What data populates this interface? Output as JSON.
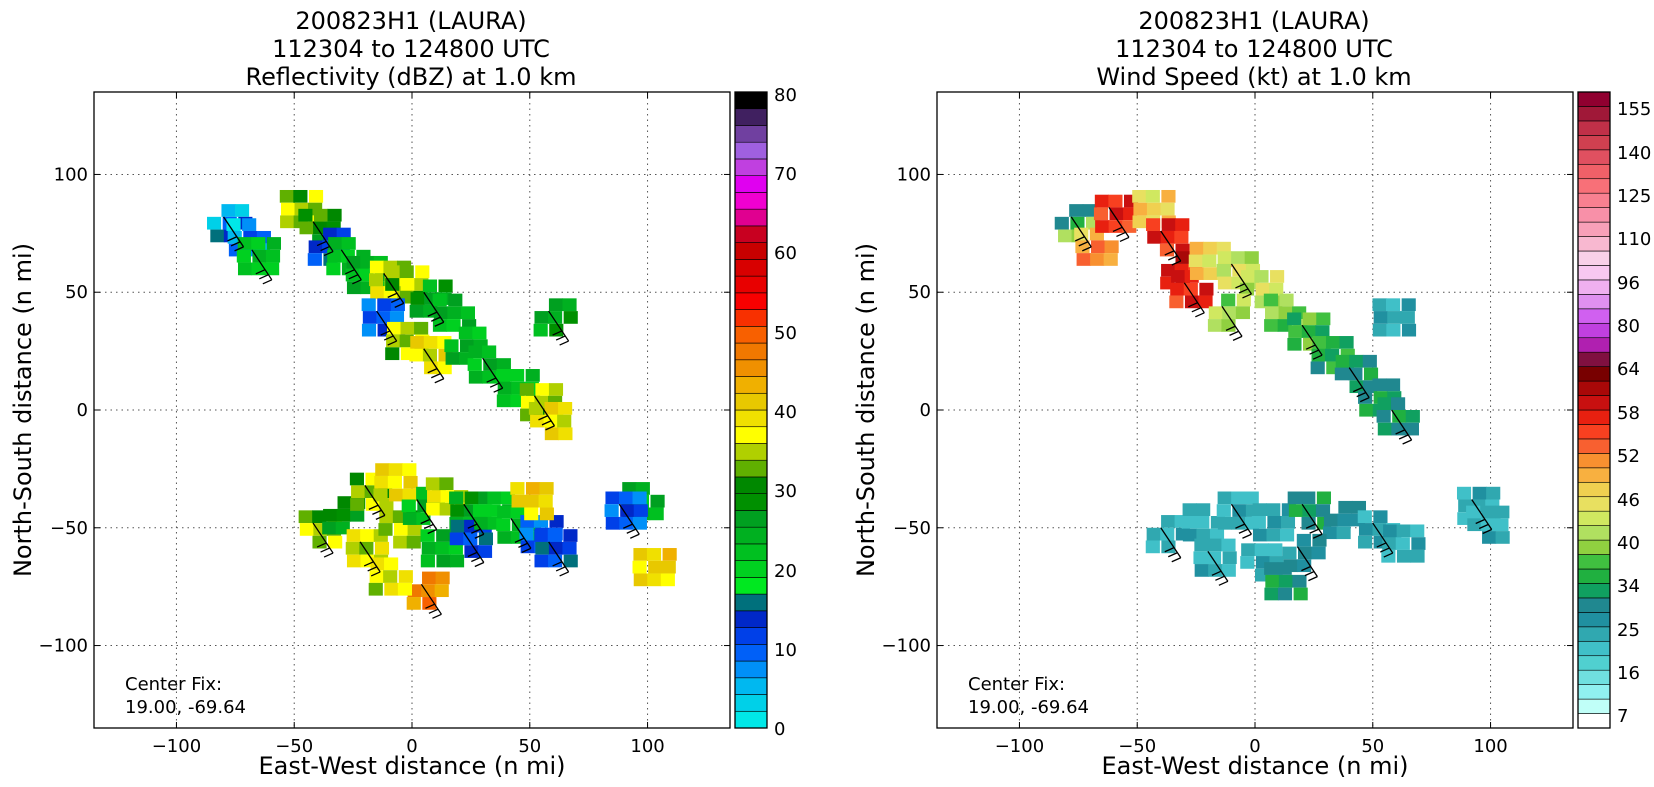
{
  "panels": [
    {
      "title_lines": [
        "200823H1 (LAURA)",
        "112304 to 124800 UTC",
        "Reflectivity (dBZ) at 1.0 km"
      ],
      "xlabel": "East-West distance (n mi)",
      "ylabel": "North-South distance (n mi)",
      "center_fix_label": "Center Fix:",
      "center_fix_value": "19.00, -69.64",
      "colorbar_ticks": [
        "0",
        "10",
        "20",
        "30",
        "40",
        "50",
        "60",
        "70",
        "80"
      ]
    },
    {
      "title_lines": [
        "200823H1 (LAURA)",
        "112304 to 124800 UTC",
        "Wind Speed (kt) at 1.0 km"
      ],
      "xlabel": "East-West distance (n mi)",
      "ylabel": "North-South distance (n mi)",
      "center_fix_label": "Center Fix:",
      "center_fix_value": "19.00, -69.64",
      "colorbar_ticks": [
        "7",
        "16",
        "25",
        "34",
        "40",
        "46",
        "52",
        "58",
        "64",
        "80",
        "96",
        "110",
        "125",
        "140",
        "155"
      ]
    }
  ],
  "chart_data": [
    {
      "type": "heatmap",
      "title": "200823H1 (LAURA) 112304 to 124800 UTC Reflectivity (dBZ) at 1.0 km",
      "xlabel": "East-West distance (n mi)",
      "ylabel": "North-South distance (n mi)",
      "xlim": [
        -135,
        135
      ],
      "ylim": [
        -135,
        135
      ],
      "xticks": [
        -100,
        -50,
        0,
        50,
        100
      ],
      "yticks": [
        -100,
        -50,
        0,
        50,
        100
      ],
      "grid": true,
      "colorbar_range": [
        0,
        80
      ],
      "colorbar_ticks": [
        0,
        10,
        20,
        30,
        40,
        50,
        60,
        70,
        80
      ],
      "colorbar_colors": [
        "#00e8e8",
        "#00d0e8",
        "#00b8f0",
        "#0090f8",
        "#0060f8",
        "#0040e8",
        "#0028c8",
        "#00707c",
        "#00e820",
        "#00d020",
        "#00c020",
        "#00b020",
        "#00a020",
        "#009000",
        "#008800",
        "#60b000",
        "#b0d000",
        "#ffff00",
        "#f0e000",
        "#e8c800",
        "#f0b000",
        "#f09000",
        "#f07800",
        "#f86000",
        "#f83000",
        "#f80000",
        "#e80000",
        "#d80000",
        "#c80000",
        "#c80020",
        "#e00090",
        "#f000d0",
        "#e000f0",
        "#c040e0",
        "#a060e0",
        "#7040a0",
        "#402060",
        "#000000"
      ],
      "cells": [
        {
          "x": -80,
          "y": 82,
          "v": 12
        },
        {
          "x": -72,
          "y": 76,
          "v": 8
        },
        {
          "x": -68,
          "y": 68,
          "v": 22
        },
        {
          "x": -50,
          "y": 88,
          "v": 34
        },
        {
          "x": -42,
          "y": 80,
          "v": 30
        },
        {
          "x": -38,
          "y": 72,
          "v": 12
        },
        {
          "x": -30,
          "y": 68,
          "v": 22
        },
        {
          "x": -22,
          "y": 60,
          "v": 24
        },
        {
          "x": -12,
          "y": 58,
          "v": 36
        },
        {
          "x": -5,
          "y": 56,
          "v": 34
        },
        {
          "x": 5,
          "y": 50,
          "v": 26
        },
        {
          "x": 15,
          "y": 44,
          "v": 24
        },
        {
          "x": -15,
          "y": 42,
          "v": 10
        },
        {
          "x": -5,
          "y": 32,
          "v": 34
        },
        {
          "x": 5,
          "y": 26,
          "v": 38
        },
        {
          "x": 20,
          "y": 30,
          "v": 24
        },
        {
          "x": 30,
          "y": 22,
          "v": 24
        },
        {
          "x": 42,
          "y": 12,
          "v": 22
        },
        {
          "x": 52,
          "y": 6,
          "v": 34
        },
        {
          "x": 56,
          "y": -2,
          "v": 38
        },
        {
          "x": 58,
          "y": 42,
          "v": 26
        },
        {
          "x": 95,
          "y": -36,
          "v": 24
        },
        {
          "x": 88,
          "y": -40,
          "v": 10
        },
        {
          "x": 100,
          "y": -64,
          "v": 40
        },
        {
          "x": -42,
          "y": -48,
          "v": 34
        },
        {
          "x": -32,
          "y": -42,
          "v": 28
        },
        {
          "x": -20,
          "y": -32,
          "v": 34
        },
        {
          "x": -10,
          "y": -28,
          "v": 38
        },
        {
          "x": -22,
          "y": -56,
          "v": 36
        },
        {
          "x": -8,
          "y": -48,
          "v": 34
        },
        {
          "x": 2,
          "y": -38,
          "v": 24
        },
        {
          "x": 12,
          "y": -34,
          "v": 36
        },
        {
          "x": 22,
          "y": -40,
          "v": 26
        },
        {
          "x": 10,
          "y": -56,
          "v": 24
        },
        {
          "x": 22,
          "y": -52,
          "v": 12
        },
        {
          "x": 32,
          "y": -40,
          "v": 22
        },
        {
          "x": 42,
          "y": -46,
          "v": 22
        },
        {
          "x": 52,
          "y": -50,
          "v": 10
        },
        {
          "x": 58,
          "y": -56,
          "v": 12
        },
        {
          "x": 48,
          "y": -36,
          "v": 40
        },
        {
          "x": 4,
          "y": -74,
          "v": 46
        },
        {
          "x": -12,
          "y": -68,
          "v": 36
        }
      ]
    },
    {
      "type": "heatmap",
      "title": "200823H1 (LAURA) 112304 to 124800 UTC Wind Speed (kt) at 1.0 km",
      "xlabel": "East-West distance (n mi)",
      "ylabel": "North-South distance (n mi)",
      "xlim": [
        -135,
        135
      ],
      "ylim": [
        -135,
        135
      ],
      "xticks": [
        -100,
        -50,
        0,
        50,
        100
      ],
      "yticks": [
        -100,
        -50,
        0,
        50,
        100
      ],
      "grid": true,
      "colorbar_ticks": [
        7,
        16,
        25,
        34,
        40,
        46,
        52,
        58,
        64,
        80,
        96,
        110,
        125,
        140,
        155
      ],
      "colorbar_levels": [
        7,
        10,
        13,
        16,
        19,
        22,
        25,
        28,
        31,
        34,
        36,
        38,
        40,
        42,
        44,
        46,
        48,
        50,
        52,
        54,
        56,
        58,
        60,
        62,
        64,
        70,
        75,
        80,
        86,
        91,
        96,
        101,
        106,
        110,
        115,
        120,
        125,
        130,
        135,
        140,
        145,
        150,
        155,
        160
      ],
      "colorbar_colors": [
        "#ffffff",
        "#c0fff8",
        "#90f0f0",
        "#70e0e0",
        "#50d0d0",
        "#40c0c8",
        "#30a8b0",
        "#2090a0",
        "#208890",
        "#10a060",
        "#20b040",
        "#40c040",
        "#90d040",
        "#b0e060",
        "#d0e860",
        "#e8e060",
        "#f0d050",
        "#f8b040",
        "#f89030",
        "#f86030",
        "#f84020",
        "#e82010",
        "#c81010",
        "#a80808",
        "#780000",
        "#801040",
        "#b020b0",
        "#c040e0",
        "#d060f0",
        "#e090f0",
        "#f0b0f0",
        "#f8c8f0",
        "#f8d0e8",
        "#f8b8d0",
        "#f8a0b8",
        "#f890a8",
        "#f88090",
        "#f87078",
        "#f06068",
        "#e05060",
        "#d04050",
        "#c03048",
        "#a01838",
        "#900030"
      ],
      "cells": [
        {
          "x": -78,
          "y": 82,
          "v": 40
        },
        {
          "x": -70,
          "y": 72,
          "v": 52
        },
        {
          "x": -62,
          "y": 86,
          "v": 58
        },
        {
          "x": -46,
          "y": 88,
          "v": 48
        },
        {
          "x": -40,
          "y": 76,
          "v": 58
        },
        {
          "x": -34,
          "y": 62,
          "v": 60
        },
        {
          "x": -30,
          "y": 54,
          "v": 58
        },
        {
          "x": -22,
          "y": 66,
          "v": 48
        },
        {
          "x": -10,
          "y": 62,
          "v": 44
        },
        {
          "x": 0,
          "y": 54,
          "v": 44
        },
        {
          "x": -14,
          "y": 44,
          "v": 42
        },
        {
          "x": 10,
          "y": 44,
          "v": 40
        },
        {
          "x": 20,
          "y": 36,
          "v": 38
        },
        {
          "x": 30,
          "y": 26,
          "v": 36
        },
        {
          "x": 40,
          "y": 18,
          "v": 34
        },
        {
          "x": 50,
          "y": 8,
          "v": 34
        },
        {
          "x": 58,
          "y": 0,
          "v": 34
        },
        {
          "x": 56,
          "y": 42,
          "v": 26
        },
        {
          "x": 92,
          "y": -38,
          "v": 25
        },
        {
          "x": 96,
          "y": -46,
          "v": 25
        },
        {
          "x": -40,
          "y": -50,
          "v": 25
        },
        {
          "x": -25,
          "y": -45,
          "v": 25
        },
        {
          "x": -10,
          "y": -40,
          "v": 25
        },
        {
          "x": 5,
          "y": -45,
          "v": 27
        },
        {
          "x": 20,
          "y": -40,
          "v": 34
        },
        {
          "x": 35,
          "y": -44,
          "v": 30
        },
        {
          "x": 50,
          "y": -48,
          "v": 27
        },
        {
          "x": 60,
          "y": -54,
          "v": 25
        },
        {
          "x": -20,
          "y": -60,
          "v": 25
        },
        {
          "x": 0,
          "y": -62,
          "v": 25
        },
        {
          "x": 18,
          "y": -58,
          "v": 30
        },
        {
          "x": 10,
          "y": -70,
          "v": 34
        }
      ]
    }
  ]
}
